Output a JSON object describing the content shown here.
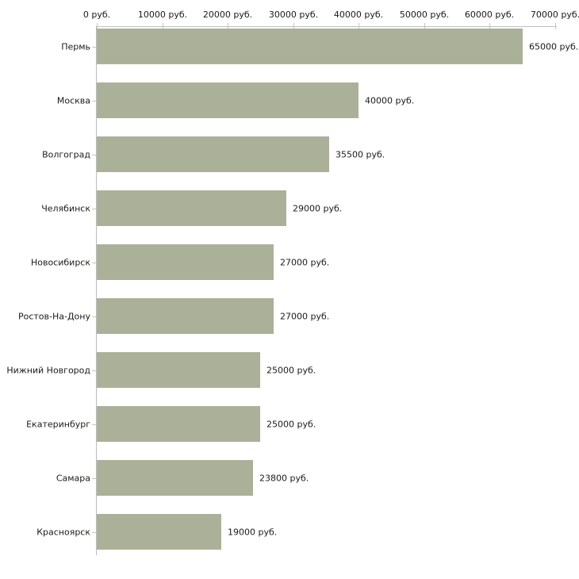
{
  "chart_data": {
    "type": "bar",
    "orientation": "horizontal",
    "title": "",
    "xlabel": "",
    "ylabel": "",
    "categories": [
      "Пермь",
      "Москва",
      "Волгоград",
      "Челябинск",
      "Новосибирск",
      "Ростов-На-Дону",
      "Нижний Новгород",
      "Екатеринбург",
      "Самара",
      "Красноярск"
    ],
    "values": [
      65000,
      40000,
      35500,
      29000,
      27000,
      27000,
      25000,
      25000,
      23800,
      19000
    ],
    "value_labels": [
      "65000 руб.",
      "40000 руб.",
      "35500 руб.",
      "29000 руб.",
      "27000 руб.",
      "27000 руб.",
      "25000 руб.",
      "25000 руб.",
      "23800 руб.",
      "19000 руб."
    ],
    "x_ticks": [
      0,
      10000,
      20000,
      30000,
      40000,
      50000,
      60000,
      70000
    ],
    "x_tick_labels": [
      "0 руб.",
      "10000 руб.",
      "20000 руб.",
      "30000 руб.",
      "40000 руб.",
      "50000 руб.",
      "60000 руб.",
      "70000 руб."
    ],
    "xlim": [
      0,
      70000
    ],
    "grid": false,
    "legend": false,
    "unit": "руб.",
    "colors": {
      "bar_fill": "#abb198",
      "axis_line": "#c0c0c0",
      "tick_mark": "#c9c9a5",
      "text": "#1a1a1a",
      "background": "#ffffff"
    }
  }
}
